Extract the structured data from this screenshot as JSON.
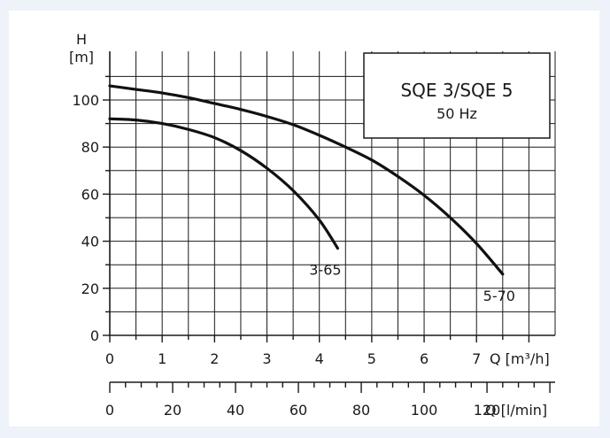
{
  "chart_data": {
    "type": "line",
    "title": "SQE 3/SQE 5",
    "subtitle": "50 Hz",
    "y_axis": {
      "label_line1": "H",
      "label_line2": "[m]",
      "ticks": [
        "0",
        "20",
        "40",
        "60",
        "80",
        "100"
      ],
      "ylim": [
        0,
        110
      ]
    },
    "x_axis": {
      "label": "Q  [m³/h]",
      "ticks": [
        "0",
        "1",
        "2",
        "3",
        "4",
        "5",
        "6",
        "7"
      ],
      "xlim": [
        0,
        8.5
      ]
    },
    "x2_axis": {
      "label": "Q [l/min]",
      "ticks": [
        "0",
        "20",
        "40",
        "60",
        "80",
        "100",
        "120"
      ],
      "xlim": [
        0,
        141.67
      ]
    },
    "grid": true,
    "series": [
      {
        "name": "3-65",
        "x": [
          0,
          0.5,
          1.0,
          1.5,
          2.0,
          2.5,
          3.0,
          3.5,
          4.0,
          4.35
        ],
        "y": [
          92,
          91.5,
          90,
          87.5,
          84,
          78.5,
          71,
          61.5,
          49,
          37
        ]
      },
      {
        "name": "5-70",
        "x": [
          0,
          0.5,
          1.0,
          1.5,
          2.0,
          2.5,
          3.0,
          3.5,
          4.0,
          4.5,
          5.0,
          5.5,
          6.0,
          6.5,
          7.0,
          7.5
        ],
        "y": [
          106,
          104.5,
          103,
          101,
          98.5,
          96,
          93,
          89.5,
          85,
          80,
          74.5,
          67.5,
          59.5,
          50,
          39,
          26
        ]
      }
    ]
  }
}
